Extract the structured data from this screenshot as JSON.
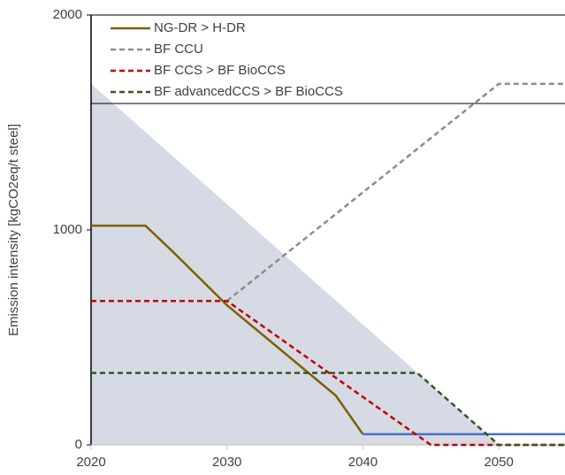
{
  "chart_data": {
    "type": "line",
    "ylabel": "Emission intensity [kgCO2eq/t steel]",
    "xlim": [
      2020,
      2055
    ],
    "xticks": [
      2020,
      2030,
      2040,
      2050
    ],
    "ylim": [
      0,
      2000
    ],
    "yticks": [
      0,
      1000,
      2000
    ],
    "area": {
      "color": "#d5dae4",
      "x": [
        2020,
        2050
      ],
      "values": [
        1680,
        0
      ]
    },
    "series": [
      {
        "name": "NG-DR > H-DR",
        "color": "#7f5f00",
        "dash": false,
        "x": [
          2020,
          2024,
          2026,
          2030,
          2038,
          2040
        ],
        "values": [
          1020,
          1020,
          900,
          650,
          230,
          50
        ]
      },
      {
        "color": "#4472c4",
        "dash": false,
        "x": [
          2040,
          2055
        ],
        "values": [
          50,
          50
        ]
      },
      {
        "name": "BF CCU",
        "color": "#8c8c8c",
        "dash": true,
        "x": [
          2030,
          2050,
          2055
        ],
        "values": [
          670,
          1680,
          1680
        ]
      },
      {
        "name": "BF CCS > BF BioCCS",
        "color": "#c00000",
        "dash": true,
        "x": [
          2020,
          2030,
          2045,
          2055
        ],
        "values": [
          670,
          670,
          0,
          0
        ]
      },
      {
        "name": "BF advancedCCS > BF BioCCS",
        "color": "#375623",
        "dash": true,
        "x": [
          2020,
          2044,
          2050,
          2055
        ],
        "values": [
          335,
          335,
          0,
          0
        ]
      }
    ]
  }
}
